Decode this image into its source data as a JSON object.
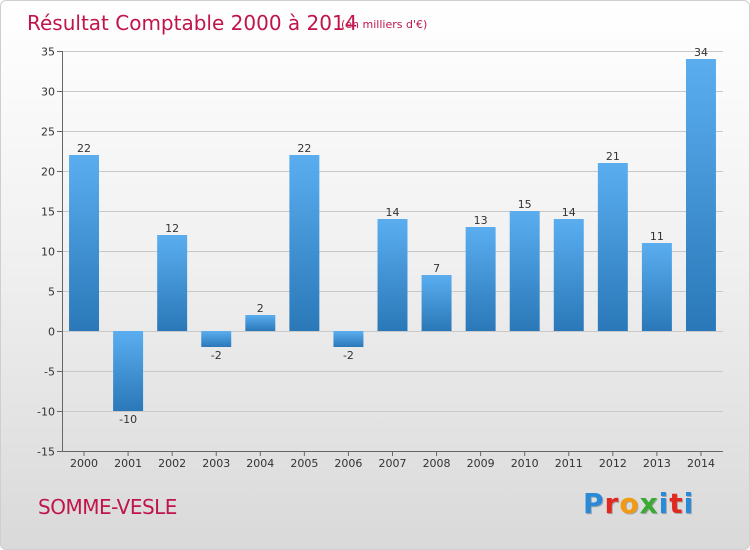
{
  "title": "Résultat Comptable 2000 à 2014",
  "subtitle": "(en milliers d'€)",
  "place": "SOMME-VESLE",
  "logo": "Proxiti",
  "colors": {
    "title": "#c0154b",
    "bar_top": "#5aaef0",
    "bar_bottom": "#2a78b8"
  },
  "chart_data": {
    "type": "bar",
    "categories": [
      "2000",
      "2001",
      "2002",
      "2003",
      "2004",
      "2005",
      "2006",
      "2007",
      "2008",
      "2009",
      "2010",
      "2011",
      "2012",
      "2013",
      "2014"
    ],
    "values": [
      22,
      -10,
      12,
      -2,
      2,
      22,
      -2,
      14,
      7,
      13,
      15,
      14,
      21,
      11,
      34
    ],
    "data_labels": [
      "22",
      "-10",
      "12",
      "-2",
      "2",
      "22",
      "-2",
      "14",
      "7",
      "13",
      "15",
      "14",
      "21",
      "11",
      "34"
    ],
    "ylim": [
      -15,
      35
    ],
    "yticks": [
      35,
      30,
      25,
      20,
      15,
      10,
      5,
      0,
      -5,
      -10,
      -15
    ],
    "ytick_labels": [
      "35",
      "30",
      "25",
      "20",
      "15",
      "10",
      "5",
      "0",
      "-5",
      "-10",
      "-15"
    ],
    "grid": true,
    "legend": "none"
  }
}
